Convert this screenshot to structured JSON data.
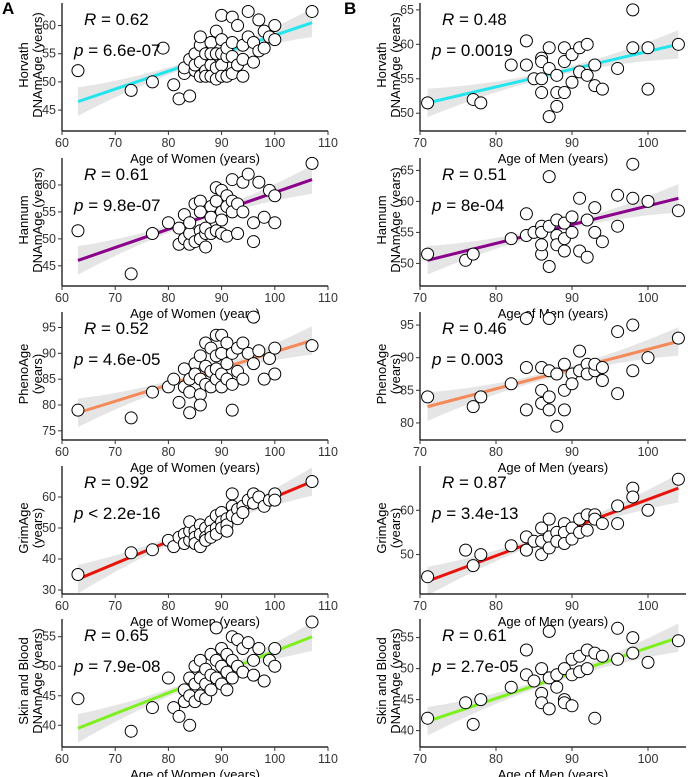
{
  "panel_labels": [
    "A",
    "B"
  ],
  "chart_data": [
    {
      "type": "scatter",
      "panel": "A",
      "title": "",
      "xlabel": "Age of Women (years)",
      "ylabel": [
        "Horvath",
        "DNAmAge (years)"
      ],
      "xlim": [
        60,
        110
      ],
      "ylim": [
        42,
        64
      ],
      "xticks": [
        60,
        70,
        80,
        90,
        100,
        110
      ],
      "yticks": [
        45,
        50,
        55,
        60
      ],
      "stats": {
        "R": "0.62",
        "p": "6.6e-07",
        "p_op": "="
      },
      "fit": {
        "x": [
          63,
          107
        ],
        "y": [
          46.5,
          60.5
        ]
      },
      "ci_color": "#e5e5e5",
      "line_color": "#22e5ee",
      "x": [
        63,
        73,
        77,
        79,
        81,
        82,
        83,
        83,
        84,
        84,
        85,
        85,
        85,
        86,
        86,
        86,
        86,
        87,
        87,
        87,
        88,
        88,
        88,
        88,
        89,
        89,
        89,
        89,
        90,
        90,
        90,
        90,
        90,
        91,
        91,
        91,
        92,
        92,
        92,
        92,
        93,
        93,
        94,
        94,
        94,
        95,
        95,
        96,
        96,
        97,
        97,
        98,
        98,
        99,
        100,
        100,
        107
      ],
      "y": [
        52,
        48.5,
        50,
        56,
        49.5,
        47,
        51.5,
        52.5,
        47.5,
        54,
        52,
        55,
        53,
        56.5,
        51,
        58,
        53.5,
        55,
        52,
        51,
        57,
        53,
        55,
        51,
        59,
        55,
        52.5,
        50.5,
        61.8,
        57.5,
        55,
        53,
        51,
        54.5,
        56,
        51,
        61.5,
        57,
        54.5,
        51.5,
        60,
        53,
        56.5,
        54,
        51,
        62.5,
        58,
        57,
        53.5,
        61,
        55.5,
        56,
        59,
        58,
        57.5,
        60,
        62.5
      ]
    },
    {
      "type": "scatter",
      "panel": "B",
      "title": "",
      "xlabel": "Age of Men (years)",
      "ylabel": [
        "Horvath",
        "DNAmAge (years)"
      ],
      "xlim": [
        70,
        105
      ],
      "ylim": [
        48,
        66
      ],
      "xticks": [
        70,
        80,
        90,
        100
      ],
      "yticks": [
        50,
        55,
        60,
        65
      ],
      "stats": {
        "R": "0.48",
        "p": "0.0019",
        "p_op": "="
      },
      "fit": {
        "x": [
          71,
          104
        ],
        "y": [
          51.5,
          60
        ]
      },
      "ci_color": "#e5e5e5",
      "line_color": "#22e5ee",
      "x": [
        71,
        77,
        78,
        82,
        84,
        84,
        85,
        86,
        86,
        86,
        86,
        87,
        87,
        87,
        88,
        88,
        88,
        89,
        89,
        89,
        90,
        90,
        91,
        91,
        92,
        92,
        93,
        93,
        94,
        96,
        98,
        98,
        100,
        100,
        104
      ],
      "y": [
        51.5,
        52,
        51.5,
        57,
        60.5,
        57,
        55,
        58,
        57.5,
        55,
        53,
        59.5,
        56.5,
        49.5,
        55.5,
        53,
        51,
        59.5,
        57.5,
        53,
        58.5,
        54.5,
        59.5,
        56,
        60,
        55.5,
        57,
        54,
        53.5,
        56.5,
        59.5,
        65,
        53.5,
        59.5,
        60
      ]
    },
    {
      "type": "scatter",
      "panel": "A",
      "title": "",
      "xlabel": "Age of Women (years)",
      "ylabel": [
        "Hannum",
        "DNAmAge (years)"
      ],
      "xlim": [
        60,
        110
      ],
      "ylim": [
        42,
        65
      ],
      "xticks": [
        60,
        70,
        80,
        90,
        100,
        110
      ],
      "yticks": [
        45,
        50,
        55,
        60
      ],
      "stats": {
        "R": "0.61",
        "p": "9.8e-07",
        "p_op": "="
      },
      "fit": {
        "x": [
          63,
          107
        ],
        "y": [
          46,
          61
        ]
      },
      "ci_color": "#e5e5e5",
      "line_color": "#8b008b",
      "x": [
        63,
        73,
        77,
        80,
        82,
        82,
        83,
        83,
        84,
        84,
        84,
        85,
        85,
        86,
        86,
        86,
        86,
        87,
        87,
        87,
        88,
        88,
        88,
        89,
        89,
        89,
        90,
        90,
        90,
        90,
        91,
        91,
        91,
        92,
        92,
        92,
        93,
        93,
        94,
        94,
        95,
        96,
        96,
        97,
        98,
        99,
        100,
        100,
        107
      ],
      "y": [
        51.5,
        43.5,
        51,
        53,
        49,
        52,
        50,
        54.5,
        49,
        51,
        53,
        56.5,
        49.5,
        57,
        55,
        51.5,
        50,
        51,
        52,
        48.5,
        56,
        54,
        51,
        59.5,
        57,
        51.5,
        59,
        55,
        53.5,
        51,
        58,
        56,
        50.5,
        61,
        57,
        55,
        56.5,
        51,
        60.5,
        55,
        62,
        53,
        49.5,
        60.5,
        54,
        59,
        53,
        58,
        64
      ]
    },
    {
      "type": "scatter",
      "panel": "B",
      "title": "",
      "xlabel": "Age of Men (years)",
      "ylabel": [
        "Hannum",
        "DNAmAge (years)"
      ],
      "xlim": [
        70,
        105
      ],
      "ylim": [
        47,
        67
      ],
      "xticks": [
        70,
        80,
        90,
        100
      ],
      "yticks": [
        50,
        55,
        60,
        65
      ],
      "stats": {
        "R": "0.51",
        "p": "8e-04",
        "p_op": "="
      },
      "fit": {
        "x": [
          71,
          104
        ],
        "y": [
          50.5,
          60.5
        ]
      },
      "ci_color": "#e5e5e5",
      "line_color": "#8b008b",
      "x": [
        71,
        76,
        77,
        82,
        84,
        84,
        85,
        86,
        86,
        86,
        86,
        87,
        87,
        87,
        88,
        88,
        88,
        89,
        89,
        89,
        90,
        90,
        91,
        91,
        92,
        92,
        93,
        93,
        94,
        96,
        96,
        98,
        98,
        100,
        104
      ],
      "y": [
        51.5,
        50.5,
        51.5,
        54,
        58,
        54.5,
        55,
        56,
        55,
        51.5,
        53,
        64,
        56,
        49.5,
        54.5,
        57,
        53,
        56.5,
        52,
        54,
        57.5,
        55,
        60.5,
        52,
        57,
        51,
        59,
        55,
        53.5,
        61,
        56,
        66,
        60.5,
        60,
        58.5
      ]
    },
    {
      "type": "scatter",
      "panel": "A",
      "title": "",
      "xlabel": "Age of Women (years)",
      "ylabel": [
        "PhenoAge",
        "(years)"
      ],
      "xlim": [
        60,
        110
      ],
      "ylim": [
        74,
        98
      ],
      "xticks": [
        60,
        70,
        80,
        90,
        100,
        110
      ],
      "yticks": [
        75,
        80,
        85,
        90,
        95
      ],
      "stats": {
        "R": "0.52",
        "p": "4.6e-05",
        "p_op": "="
      },
      "fit": {
        "x": [
          63,
          107
        ],
        "y": [
          78.5,
          92.5
        ]
      },
      "ci_color": "#e5e5e5",
      "line_color": "#f4895a",
      "x": [
        63,
        73,
        77,
        80,
        81,
        82,
        83,
        83,
        84,
        84,
        84,
        85,
        85,
        86,
        86,
        86,
        86,
        87,
        87,
        87,
        88,
        88,
        88,
        89,
        89,
        89,
        89,
        90,
        90,
        90,
        90,
        91,
        91,
        91,
        92,
        92,
        92,
        93,
        93,
        94,
        94,
        95,
        96,
        96,
        97,
        98,
        99,
        100,
        100,
        107
      ],
      "y": [
        79,
        77.5,
        82.5,
        83.5,
        85,
        80.5,
        87,
        83.5,
        78.5,
        82.5,
        85,
        88,
        86,
        89.5,
        85,
        82,
        80,
        92,
        87.5,
        84,
        91,
        86.5,
        83.5,
        93.5,
        89.5,
        85,
        87,
        93.5,
        90,
        86,
        83.5,
        92,
        85,
        88,
        90,
        84,
        79,
        91,
        86.5,
        92,
        85,
        90,
        97,
        88,
        90.5,
        85,
        89,
        86,
        91,
        91.5
      ]
    },
    {
      "type": "scatter",
      "panel": "B",
      "title": "",
      "xlabel": "Age of Men (years)",
      "ylabel": [
        "PhenoAge",
        "(years)"
      ],
      "xlim": [
        70,
        105
      ],
      "ylim": [
        78,
        97
      ],
      "xticks": [
        70,
        80,
        90,
        100
      ],
      "yticks": [
        80,
        85,
        90,
        95
      ],
      "stats": {
        "R": "0.46",
        "p": "0.003",
        "p_op": "="
      },
      "fit": {
        "x": [
          71,
          104
        ],
        "y": [
          82.5,
          92.5
        ]
      },
      "ci_color": "#e5e5e5",
      "line_color": "#f4895a",
      "x": [
        71,
        77,
        78,
        82,
        84,
        84,
        84,
        86,
        86,
        86,
        87,
        87,
        87,
        87,
        88,
        88,
        89,
        89,
        89,
        90,
        90,
        91,
        91,
        92,
        92,
        93,
        93,
        94,
        94,
        96,
        96,
        98,
        98,
        100,
        104
      ],
      "y": [
        84,
        82.5,
        84,
        86,
        96,
        88.5,
        82,
        88.5,
        85,
        83,
        96,
        88,
        84,
        82,
        87.5,
        79.5,
        89,
        85,
        82,
        87.5,
        86,
        91,
        88,
        89,
        87.5,
        88,
        89,
        88.5,
        86.5,
        84.5,
        94,
        88,
        95,
        90,
        93
      ]
    },
    {
      "type": "scatter",
      "panel": "A",
      "title": "",
      "xlabel": "Age of Women (years)",
      "ylabel": [
        "GrimAge",
        "(years)"
      ],
      "xlim": [
        60,
        110
      ],
      "ylim": [
        30,
        70
      ],
      "xticks": [
        60,
        70,
        80,
        90,
        100,
        110
      ],
      "yticks": [
        30,
        40,
        50,
        60
      ],
      "stats": {
        "R": "0.92",
        "p": "2.2e-16",
        "p_op": "<"
      },
      "fit": {
        "x": [
          63,
          107
        ],
        "y": [
          33.5,
          65
        ]
      },
      "ci_color": "#e5e5e5",
      "line_color": "#e8140c",
      "x": [
        63,
        73,
        77,
        80,
        81,
        82,
        83,
        83,
        84,
        84,
        84,
        85,
        85,
        85,
        86,
        86,
        86,
        87,
        87,
        87,
        88,
        88,
        88,
        89,
        89,
        89,
        90,
        90,
        90,
        91,
        91,
        91,
        92,
        92,
        92,
        93,
        93,
        94,
        94,
        95,
        96,
        96,
        97,
        98,
        99,
        100,
        100,
        107
      ],
      "y": [
        35,
        42,
        43,
        46,
        44,
        47,
        48,
        45,
        46,
        49,
        52,
        49,
        47,
        45,
        51,
        48,
        44,
        50,
        47,
        46,
        52,
        49,
        47,
        54,
        50,
        48,
        55,
        52,
        50,
        53,
        51,
        49,
        61,
        57,
        54,
        56,
        53,
        57,
        55,
        59,
        61,
        58,
        60,
        57,
        59,
        61,
        59,
        65
      ]
    },
    {
      "type": "scatter",
      "panel": "B",
      "title": "",
      "xlabel": "Age of Men (years)",
      "ylabel": [
        "GrimAge",
        "(years)"
      ],
      "xlim": [
        70,
        105
      ],
      "ylim": [
        42,
        70
      ],
      "xticks": [
        70,
        80,
        90,
        100
      ],
      "yticks": [
        50,
        60
      ],
      "stats": {
        "R": "0.87",
        "p": "3.4e-13",
        "p_op": "="
      },
      "fit": {
        "x": [
          71,
          104
        ],
        "y": [
          44,
          65
        ]
      },
      "ci_color": "#e5e5e5",
      "line_color": "#e8140c",
      "x": [
        71,
        76,
        77,
        78,
        82,
        84,
        84,
        85,
        86,
        86,
        86,
        87,
        87,
        87,
        88,
        88,
        89,
        89,
        89,
        90,
        90,
        91,
        91,
        92,
        92,
        93,
        93,
        94,
        96,
        96,
        98,
        98,
        100,
        104
      ],
      "y": [
        45,
        51,
        47.5,
        50,
        52,
        54,
        51,
        53,
        56,
        53,
        50,
        58,
        54,
        51.5,
        55,
        53,
        57,
        55,
        52.5,
        56,
        53.5,
        58,
        55,
        59,
        55.5,
        59,
        58,
        57,
        61,
        57,
        65,
        63,
        60,
        67
      ]
    },
    {
      "type": "scatter",
      "panel": "A",
      "title": "",
      "xlabel": "Age of Women (years)",
      "ylabel": [
        "Skin and Blood",
        "DNAmAge (years)"
      ],
      "xlim": [
        60,
        110
      ],
      "ylim": [
        37,
        58
      ],
      "xticks": [
        60,
        70,
        80,
        90,
        100,
        110
      ],
      "yticks": [
        40,
        45,
        50,
        55
      ],
      "stats": {
        "R": "0.65",
        "p": "7.9e-08",
        "p_op": "="
      },
      "fit": {
        "x": [
          63,
          107
        ],
        "y": [
          39.5,
          55
        ]
      },
      "ci_color": "#e5e5e5",
      "line_color": "#7df01e",
      "x": [
        63,
        73,
        77,
        80,
        81,
        82,
        83,
        83,
        84,
        84,
        84,
        85,
        85,
        85,
        86,
        86,
        86,
        87,
        87,
        87,
        88,
        88,
        88,
        89,
        89,
        89,
        90,
        90,
        90,
        91,
        91,
        91,
        92,
        92,
        92,
        93,
        93,
        94,
        94,
        95,
        96,
        96,
        97,
        98,
        99,
        100,
        100,
        107
      ],
      "y": [
        44.5,
        39,
        43,
        48,
        43,
        41.5,
        46,
        44,
        40,
        48,
        45,
        50,
        47,
        44,
        51,
        48,
        45,
        49.5,
        47,
        44.5,
        52,
        48.5,
        46,
        56.5,
        51,
        48,
        53,
        50,
        47,
        52,
        49,
        46,
        55,
        51,
        48,
        54.5,
        50,
        53,
        49,
        54,
        51,
        48.5,
        53,
        47.5,
        51,
        53,
        50,
        57.5
      ]
    },
    {
      "type": "scatter",
      "panel": "B",
      "title": "",
      "xlabel": "Age of Men (years)",
      "ylabel": [
        "Skin and Blood",
        "DNAmAge (years)"
      ],
      "xlim": [
        70,
        105
      ],
      "ylim": [
        38,
        58
      ],
      "xticks": [
        70,
        80,
        90,
        100
      ],
      "yticks": [
        40,
        45,
        50,
        55
      ],
      "stats": {
        "R": "0.61",
        "p": "2.7e-05",
        "p_op": "="
      },
      "fit": {
        "x": [
          71,
          104
        ],
        "y": [
          41.5,
          55
        ]
      },
      "ci_color": "#e5e5e5",
      "line_color": "#7df01e",
      "x": [
        71,
        76,
        77,
        78,
        82,
        84,
        84,
        85,
        86,
        86,
        86,
        87,
        87,
        87,
        88,
        88,
        89,
        89,
        89,
        90,
        90,
        90,
        91,
        91,
        92,
        92,
        93,
        93,
        94,
        96,
        96,
        98,
        98,
        100,
        104
      ],
      "y": [
        42,
        44.5,
        41,
        45,
        47,
        53,
        49,
        48,
        50,
        46,
        44.5,
        56,
        48.5,
        43.5,
        49,
        47,
        50,
        45,
        44.5,
        51.5,
        49,
        44,
        52,
        49.5,
        53,
        50,
        52.5,
        42,
        52,
        56.5,
        51.5,
        55,
        52.5,
        51,
        54.5
      ]
    }
  ]
}
